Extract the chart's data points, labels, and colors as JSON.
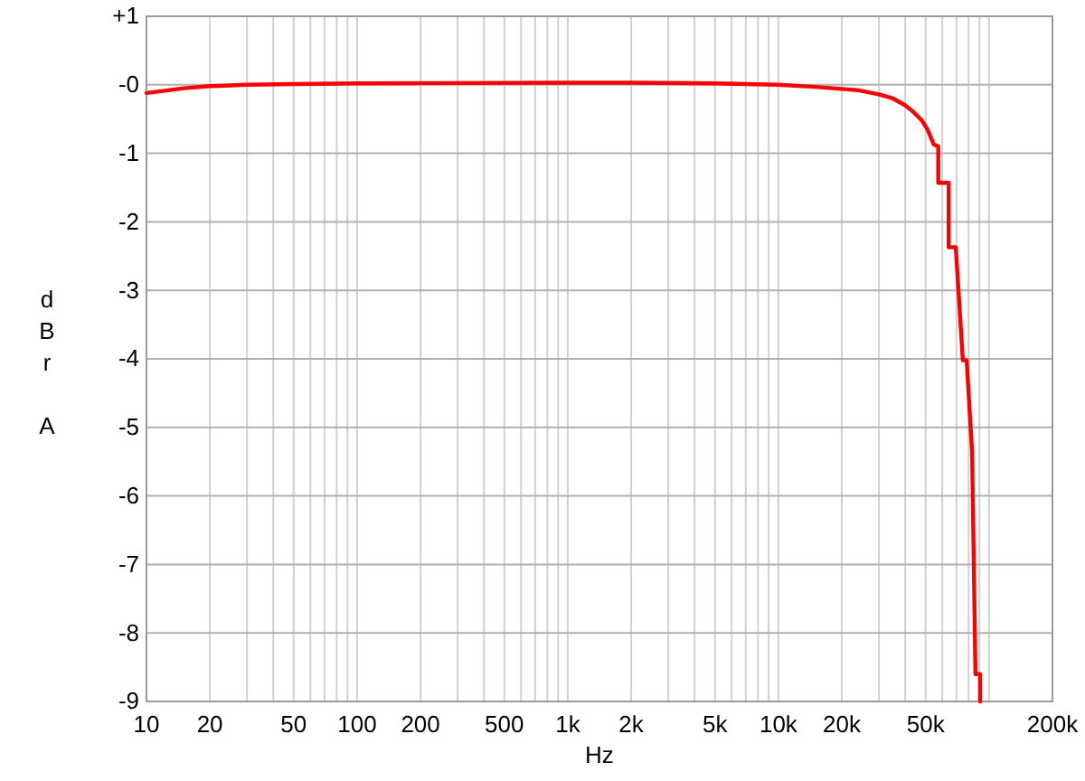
{
  "chart_data": {
    "type": "line",
    "xlabel": "Hz",
    "ylabel": "dBr A",
    "log": "x",
    "grid": true,
    "marker": "none",
    "line_style": "solid",
    "xlim": [
      10,
      200000
    ],
    "ylim": [
      -9,
      1
    ],
    "xticks": [
      10,
      20,
      50,
      100,
      200,
      500,
      {
        "value": 1000,
        "label": "1k"
      },
      {
        "value": 2000,
        "label": "2k"
      },
      {
        "value": 5000,
        "label": "5k"
      },
      {
        "value": 10000,
        "label": "10k"
      },
      {
        "value": 20000,
        "label": "20k"
      },
      {
        "value": 50000,
        "label": "50k"
      },
      {
        "value": 200000,
        "label": "200k"
      }
    ],
    "yticks": [
      {
        "value": 1,
        "label": "+1"
      },
      {
        "value": 0,
        "label": "-0"
      },
      -1,
      -2,
      -3,
      -4,
      -5,
      -6,
      -7,
      -8,
      -9
    ],
    "x": [
      10,
      12,
      15,
      20,
      30,
      50,
      100,
      1000,
      2000,
      5000,
      10000,
      15000,
      20000,
      24000,
      30000,
      35000,
      40000,
      43500,
      48000,
      51000,
      54600,
      57400,
      57400,
      64300,
      64300,
      69500,
      75100,
      78300,
      83100,
      86200,
      90700,
      90700
    ],
    "series": [
      {
        "color": "#ff0000",
        "values": [
          -0.12,
          -0.09,
          -0.05,
          -0.02,
          0,
          0.01,
          0.02,
          0.03,
          0.03,
          0.02,
          0,
          -0.03,
          -0.06,
          -0.08,
          -0.14,
          -0.2,
          -0.3,
          -0.39,
          -0.52,
          -0.65,
          -0.87,
          -0.9,
          -1.43,
          -1.43,
          -2.37,
          -2.37,
          -4.02,
          -4.02,
          -5.36,
          -8.6,
          -8.6,
          -9
        ]
      }
    ]
  }
}
